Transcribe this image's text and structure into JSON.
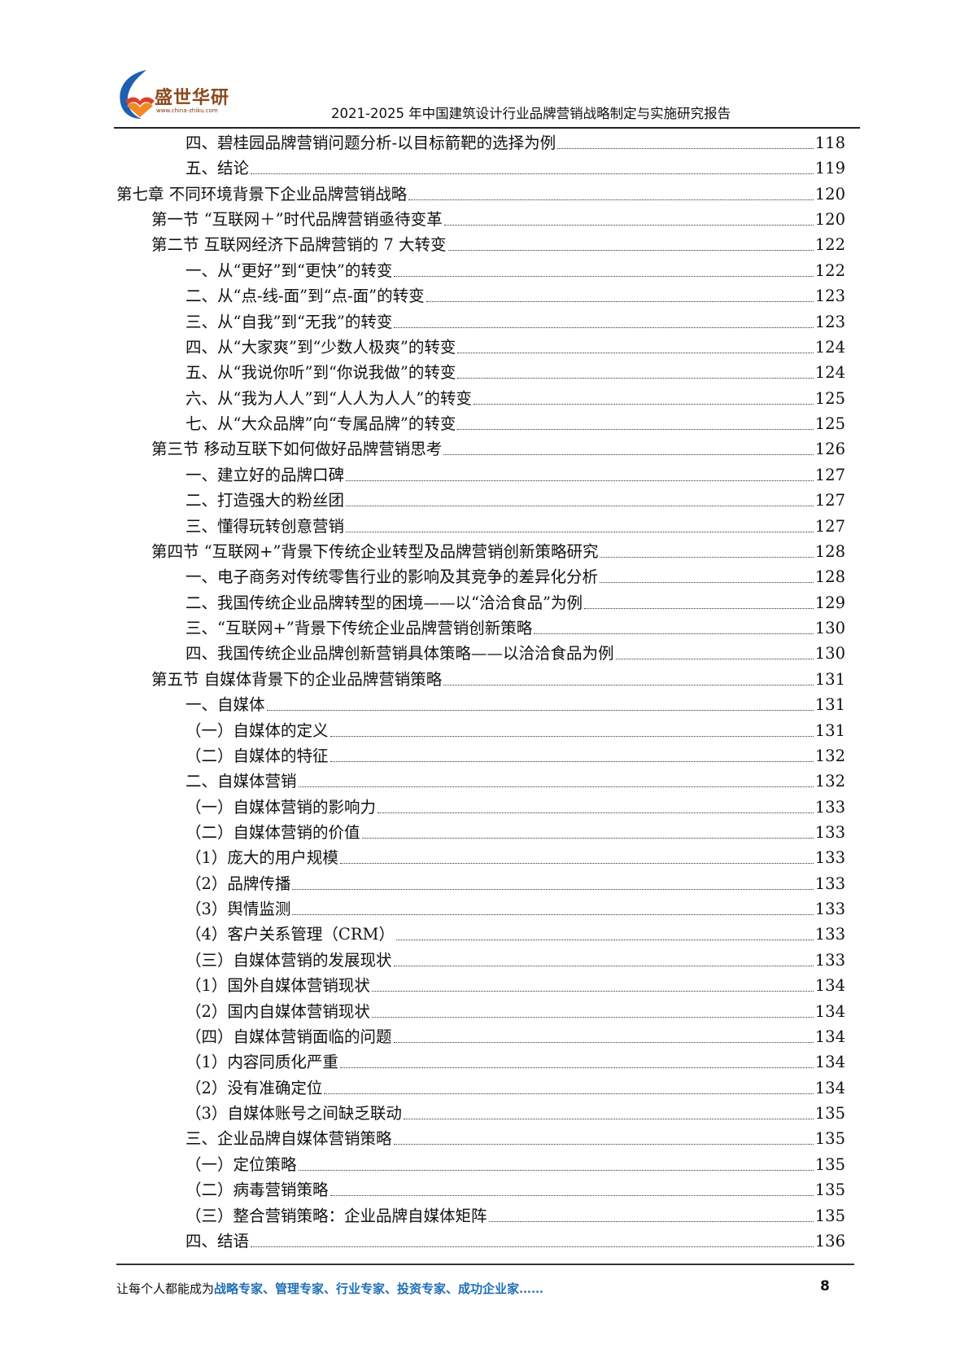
{
  "header": {
    "logo_name": "盛世华研",
    "logo_url": "www.china-zhiku.com",
    "title": "2021-2025 年中国建筑设计行业品牌营销战略制定与实施研究报告"
  },
  "toc": [
    {
      "level": 3,
      "title": "四、碧桂园品牌营销问题分析-以目标箭靶的选择为例",
      "page": "118"
    },
    {
      "level": 3,
      "title": "五、结论",
      "page": "119"
    },
    {
      "level": 1,
      "title": "第七章  不同环境背景下企业品牌营销战略",
      "page": "120"
    },
    {
      "level": 2,
      "title": "第一节  “互联网＋”时代品牌营销亟待变革",
      "page": "120"
    },
    {
      "level": 2,
      "title": "第二节  互联网经济下品牌营销的 7 大转变",
      "page": "122"
    },
    {
      "level": 3,
      "title": "一、从“更好”到“更快”的转变",
      "page": "122"
    },
    {
      "level": 3,
      "title": "二、从“点-线-面”到“点-面”的转变",
      "page": "123"
    },
    {
      "level": 3,
      "title": "三、从“自我”到“无我”的转变",
      "page": "123"
    },
    {
      "level": 3,
      "title": "四、从“大家爽”到“少数人极爽”的转变",
      "page": "124"
    },
    {
      "level": 3,
      "title": "五、从“我说你听”到“你说我做”的转变",
      "page": "124"
    },
    {
      "level": 3,
      "title": "六、从“我为人人”到“人人为人人”的转变",
      "page": "125"
    },
    {
      "level": 3,
      "title": "七、从“大众品牌”向“专属品牌”的转变",
      "page": "125"
    },
    {
      "level": 2,
      "title": "第三节  移动互联下如何做好品牌营销思考",
      "page": "126"
    },
    {
      "level": 3,
      "title": "一、建立好的品牌口碑",
      "page": "127"
    },
    {
      "level": 3,
      "title": "二、打造强大的粉丝团",
      "page": "127"
    },
    {
      "level": 3,
      "title": "三、懂得玩转创意营销",
      "page": "127"
    },
    {
      "level": 2,
      "title": "第四节  “互联网+”背景下传统企业转型及品牌营销创新策略研究",
      "page": "128"
    },
    {
      "level": 3,
      "title": "一、电子商务对传统零售行业的影响及其竞争的差异化分析",
      "page": "128"
    },
    {
      "level": 3,
      "title": "二、我国传统企业品牌转型的困境——以“洽洽食品”为例",
      "page": "129"
    },
    {
      "level": 3,
      "title": "三、“互联网+”背景下传统企业品牌营销创新策略",
      "page": "130"
    },
    {
      "level": 3,
      "title": "四、我国传统企业品牌创新营销具体策略——以洽洽食品为例",
      "page": "130"
    },
    {
      "level": 2,
      "title": "第五节  自媒体背景下的企业品牌营销策略",
      "page": "131"
    },
    {
      "level": 3,
      "title": "一、自媒体",
      "page": "131"
    },
    {
      "level": 3,
      "title": "（一）自媒体的定义",
      "page": "131"
    },
    {
      "level": 3,
      "title": "（二）自媒体的特征",
      "page": "132"
    },
    {
      "level": 3,
      "title": "二、自媒体营销",
      "page": "132"
    },
    {
      "level": 3,
      "title": "（一）自媒体营销的影响力",
      "page": "133"
    },
    {
      "level": 3,
      "title": "（二）自媒体营销的价值",
      "page": "133"
    },
    {
      "level": 3,
      "title": "（1）庞大的用户规模",
      "page": "133"
    },
    {
      "level": 3,
      "title": "（2）品牌传播",
      "page": "133"
    },
    {
      "level": 3,
      "title": "（3）舆情监测",
      "page": "133"
    },
    {
      "level": 3,
      "title": "（4）客户关系管理（CRM）",
      "page": "133"
    },
    {
      "level": 3,
      "title": "（三）自媒体营销的发展现状",
      "page": "133"
    },
    {
      "level": 3,
      "title": "（1）国外自媒体营销现状",
      "page": "134"
    },
    {
      "level": 3,
      "title": "（2）国内自媒体营销现状",
      "page": "134"
    },
    {
      "level": 3,
      "title": "（四）自媒体营销面临的问题",
      "page": "134"
    },
    {
      "level": 3,
      "title": "（1）内容同质化严重",
      "page": "134"
    },
    {
      "level": 3,
      "title": "（2）没有准确定位",
      "page": "134"
    },
    {
      "level": 3,
      "title": "（3）自媒体账号之间缺乏联动",
      "page": "135"
    },
    {
      "level": 3,
      "title": "三、企业品牌自媒体营销策略",
      "page": "135"
    },
    {
      "level": 3,
      "title": "（一）定位策略",
      "page": "135"
    },
    {
      "level": 3,
      "title": "（二）病毒营销策略",
      "page": "135"
    },
    {
      "level": 3,
      "title": "（三）整合营销策略：企业品牌自媒体矩阵",
      "page": "135"
    },
    {
      "level": 3,
      "title": "四、结语",
      "page": "136"
    }
  ],
  "footer": {
    "slogan_prefix": "让每个人都能成为",
    "slogan_highlight": "战略专家、管理专家、行业专家、投资专家、成功企业家……",
    "page_number": "8",
    "highlight_color": "#1f6fb5"
  }
}
